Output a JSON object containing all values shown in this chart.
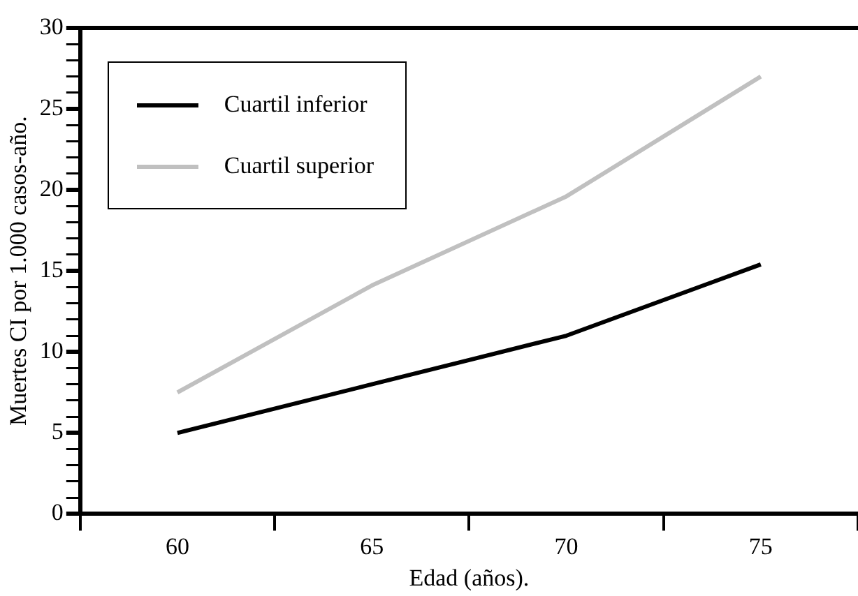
{
  "chart_data": {
    "type": "line",
    "xlabel": "Edad (años).",
    "ylabel": "Muertes CI por 1.000 casos-año.",
    "categories": [
      "60",
      "65",
      "70",
      "75"
    ],
    "series": [
      {
        "name": "Cuartil inferior",
        "color": "#000000",
        "values": [
          5,
          8,
          11,
          15.4
        ]
      },
      {
        "name": "Cuartil superior",
        "color": "#c0c0c0",
        "values": [
          7.5,
          14.1,
          19.6,
          27
        ]
      }
    ],
    "ylim": [
      0,
      30
    ],
    "yticks": [
      0,
      {
        "value": 1,
        "label": null
      },
      {
        "value": 2,
        "label": null
      },
      {
        "value": 3,
        "label": null
      },
      {
        "value": 4,
        "label": null
      },
      5,
      {
        "value": 6,
        "label": null
      },
      {
        "value": 7,
        "label": null
      },
      {
        "value": 8,
        "label": null
      },
      {
        "value": 9,
        "label": null
      },
      10,
      {
        "value": 11,
        "label": null
      },
      {
        "value": 12,
        "label": null
      },
      {
        "value": 13,
        "label": null
      },
      {
        "value": 14,
        "label": null
      },
      15,
      {
        "value": 16,
        "label": null
      },
      {
        "value": 17,
        "label": null
      },
      {
        "value": 18,
        "label": null
      },
      {
        "value": 19,
        "label": null
      },
      20,
      {
        "value": 21,
        "label": null
      },
      {
        "value": 22,
        "label": null
      },
      {
        "value": 23,
        "label": null
      },
      {
        "value": 24,
        "label": null
      },
      25,
      {
        "value": 26,
        "label": null
      },
      {
        "value": 27,
        "label": null
      },
      {
        "value": 28,
        "label": null
      },
      {
        "value": 29,
        "label": null
      },
      30
    ],
    "grid": false,
    "legend": "top left",
    "marker": "none",
    "line_style": "solid"
  }
}
